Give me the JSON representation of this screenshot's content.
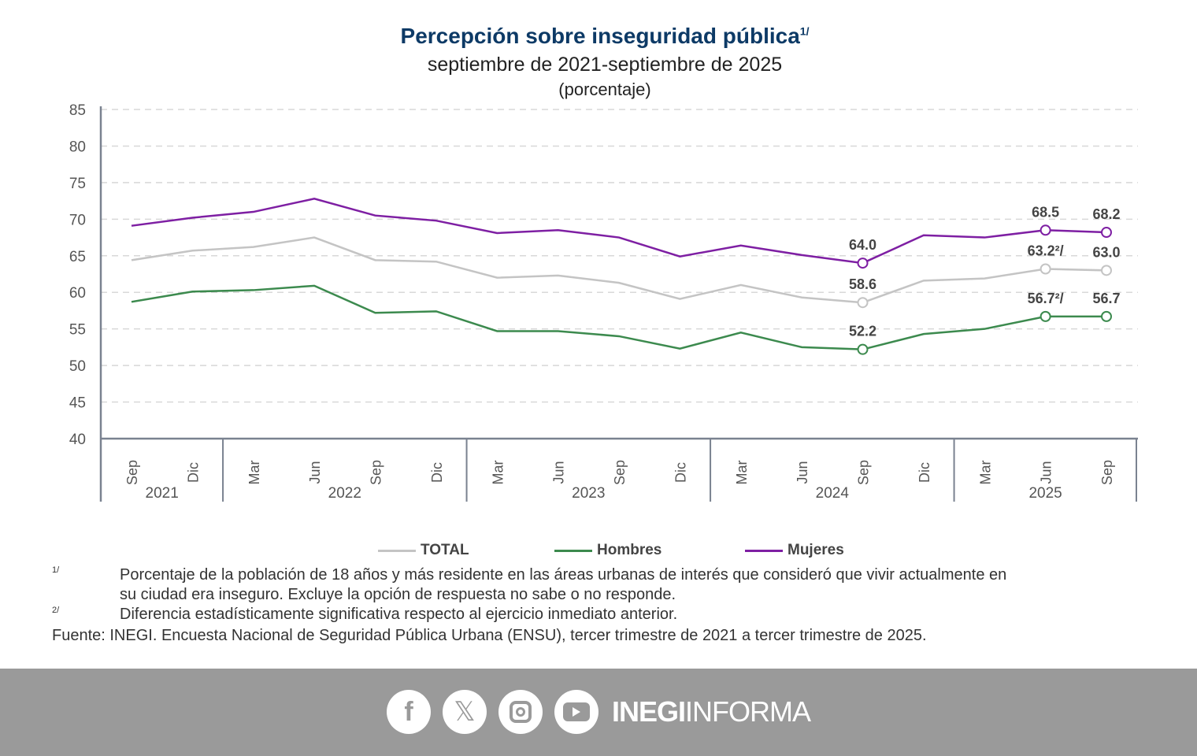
{
  "chart_data": {
    "type": "line",
    "title": "Percepción sobre inseguridad pública",
    "title_note": "1/",
    "subtitle": "septiembre de 2021-septiembre de 2025",
    "unit": "(porcentaje)",
    "ylim": [
      40,
      85
    ],
    "yticks": [
      "85",
      "80",
      "75",
      "70",
      "65",
      "60",
      "55",
      "50",
      "45",
      "40"
    ],
    "grid": true,
    "legend_position": "bottom",
    "x_months": [
      "Sep",
      "Dic",
      "Mar",
      "Jun",
      "Sep",
      "Dic",
      "Mar",
      "Jun",
      "Sep",
      "Dic",
      "Mar",
      "Jun",
      "Sep",
      "Dic",
      "Mar",
      "Jun",
      "Sep"
    ],
    "x_years": [
      {
        "label": "2021",
        "from": 0,
        "to": 1
      },
      {
        "label": "2022",
        "from": 2,
        "to": 5
      },
      {
        "label": "2023",
        "from": 6,
        "to": 9
      },
      {
        "label": "2024",
        "from": 10,
        "to": 13
      },
      {
        "label": "2025",
        "from": 14,
        "to": 16
      }
    ],
    "series": [
      {
        "name": "TOTAL",
        "color": "#c4c4c4",
        "values": [
          64.4,
          65.7,
          66.2,
          67.5,
          64.4,
          64.2,
          62.0,
          62.3,
          61.3,
          59.1,
          61.0,
          59.3,
          58.6,
          61.6,
          61.9,
          63.2,
          63.0
        ],
        "labels": [
          {
            "i": 12,
            "text": "58.6"
          },
          {
            "i": 15,
            "text": "63.2²/"
          },
          {
            "i": 16,
            "text": "63.0"
          }
        ]
      },
      {
        "name": "Hombres",
        "color": "#3c8a4e",
        "values": [
          58.7,
          60.1,
          60.3,
          60.9,
          57.2,
          57.4,
          54.7,
          54.7,
          54.0,
          52.3,
          54.5,
          52.5,
          52.2,
          54.3,
          55.0,
          56.7,
          56.7
        ],
        "labels": [
          {
            "i": 12,
            "text": "52.2"
          },
          {
            "i": 15,
            "text": "56.7²/"
          },
          {
            "i": 16,
            "text": "56.7"
          }
        ]
      },
      {
        "name": "Mujeres",
        "color": "#7e1fa3",
        "values": [
          69.1,
          70.2,
          71.0,
          72.8,
          70.5,
          69.8,
          68.1,
          68.5,
          67.5,
          64.9,
          66.4,
          65.1,
          64.0,
          67.8,
          67.5,
          68.5,
          68.2
        ],
        "labels": [
          {
            "i": 12,
            "text": "64.0"
          },
          {
            "i": 15,
            "text": "68.5"
          },
          {
            "i": 16,
            "text": "68.2"
          }
        ]
      }
    ]
  },
  "footnotes": {
    "n1_mark": "1/",
    "n1_line1": "Porcentaje de la población de 18 años y más residente en las áreas urbanas de interés que consideró que vivir actualmente en",
    "n1_line2": "su ciudad era inseguro. Excluye la opción de respuesta no sabe o no responde.",
    "n2_mark": "2/",
    "n2": "Diferencia estadísticamente significativa respecto al ejercicio inmediato anterior.",
    "source": "Fuente: INEGI. Encuesta Nacional de Seguridad Pública Urbana (ENSU), tercer trimestre de 2021 a tercer trimestre de 2025."
  },
  "footer": {
    "brand_bold": "INEGI",
    "brand_light": "INFORMA",
    "icons": [
      "facebook-icon",
      "x-icon",
      "instagram-icon",
      "youtube-icon"
    ]
  }
}
